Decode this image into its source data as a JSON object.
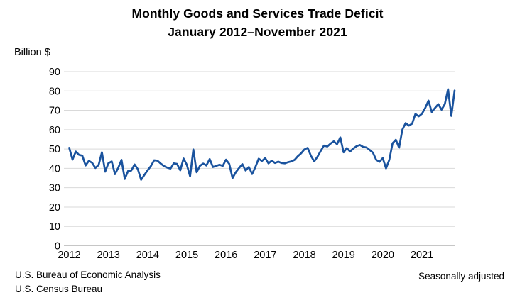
{
  "title": {
    "line1": "Monthly Goods and Services Trade Deficit",
    "line2": "January 2012–November 2021"
  },
  "footer": {
    "source_line1": "U.S. Bureau of Economic Analysis",
    "source_line2": "U.S. Census Bureau",
    "note": "Seasonally adjusted"
  },
  "colors": {
    "line": "#1A539E",
    "gridline": "#D9D9D9",
    "zero_line": "#C6C6C6",
    "text": "#000000"
  },
  "chart_data": {
    "type": "line",
    "title": "Monthly Goods and Services Trade Deficit",
    "subtitle": "January 2012–November 2021",
    "xlabel": "",
    "ylabel": "Billion $",
    "ylim": [
      0,
      90
    ],
    "yticks": [
      0,
      10,
      20,
      30,
      40,
      50,
      60,
      70,
      80,
      90
    ],
    "xtick_labels": [
      "2012",
      "2013",
      "2014",
      "2015",
      "2016",
      "2017",
      "2018",
      "2019",
      "2020",
      "2021"
    ],
    "x_start": "2012-01",
    "x_end": "2021-11",
    "grid": "horizontal",
    "legend": "none",
    "series": [
      {
        "name": "Goods and services trade deficit",
        "values": [
          50.6,
          44.5,
          48.7,
          47.0,
          46.6,
          41.5,
          43.9,
          42.9,
          40.2,
          41.8,
          48.3,
          38.3,
          42.7,
          43.6,
          37.0,
          40.3,
          44.4,
          34.5,
          38.6,
          38.9,
          42.0,
          39.6,
          34.1,
          36.6,
          39.0,
          41.2,
          44.2,
          44.0,
          42.5,
          41.2,
          40.4,
          39.9,
          42.6,
          42.3,
          39.0,
          45.1,
          41.9,
          35.9,
          49.8,
          38.0,
          41.3,
          42.5,
          41.5,
          44.8,
          40.7,
          41.3,
          41.9,
          41.3,
          44.5,
          42.3,
          35.0,
          38.0,
          40.2,
          42.2,
          38.9,
          40.7,
          37.1,
          40.7,
          45.0,
          43.8,
          45.3,
          42.6,
          44.0,
          42.8,
          43.5,
          42.8,
          42.6,
          43.2,
          43.6,
          44.4,
          46.3,
          47.8,
          49.8,
          50.6,
          46.5,
          43.6,
          46.0,
          49.0,
          51.8,
          51.3,
          52.8,
          54.0,
          52.5,
          56.0,
          48.3,
          50.5,
          48.7,
          50.3,
          51.5,
          52.1,
          51.1,
          50.8,
          49.5,
          48.1,
          44.4,
          43.4,
          45.3,
          40.0,
          44.4,
          53.0,
          54.8,
          50.7,
          60.0,
          63.4,
          62.1,
          63.1,
          68.1,
          66.9,
          68.2,
          71.2,
          75.0,
          69.1,
          71.2,
          73.2,
          70.3,
          73.2,
          80.9,
          67.1,
          80.2
        ]
      }
    ]
  }
}
